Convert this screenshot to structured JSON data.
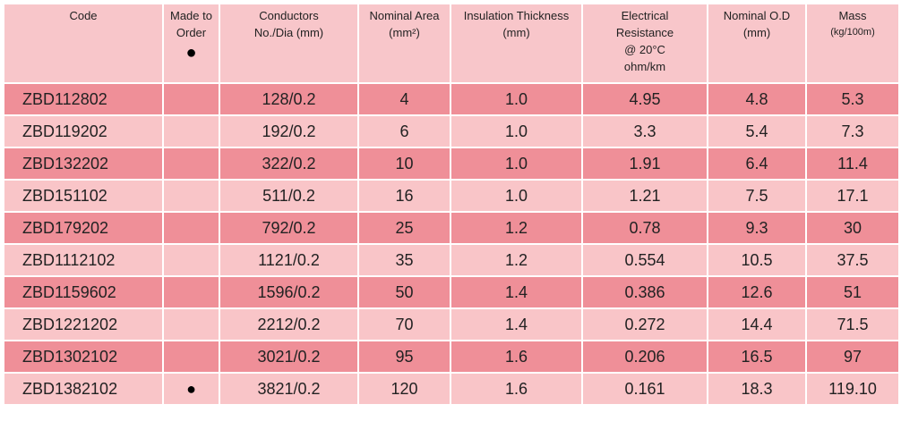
{
  "table": {
    "header": [
      [
        "Code"
      ],
      [
        "Made to",
        "Order",
        "●"
      ],
      [
        "Conductors",
        "No./Dia (mm)"
      ],
      [
        "Nominal Area",
        "(mm²)"
      ],
      [
        "Insulation Thickness",
        "(mm)"
      ],
      [
        "Electrical",
        "Resistance",
        "@ 20°C",
        "ohm/km"
      ],
      [
        "Nominal O.D",
        "(mm)"
      ],
      [
        "Mass",
        "(kg/100m)"
      ]
    ],
    "rows": [
      {
        "code": "ZBD112802",
        "conductors": "128/0.2",
        "area": "4",
        "insulation": "1.0",
        "resistance": "4.95",
        "od": "4.8",
        "mass": "5.3"
      },
      {
        "code": "ZBD119202",
        "conductors": "192/0.2",
        "area": "6",
        "insulation": "1.0",
        "resistance": "3.3",
        "od": "5.4",
        "mass": "7.3"
      },
      {
        "code": "ZBD132202",
        "conductors": "322/0.2",
        "area": "10",
        "insulation": "1.0",
        "resistance": "1.91",
        "od": "6.4",
        "mass": "11.4"
      },
      {
        "code": "ZBD151102",
        "conductors": "511/0.2",
        "area": "16",
        "insulation": "1.0",
        "resistance": "1.21",
        "od": "7.5",
        "mass": "17.1"
      },
      {
        "code": "ZBD179202",
        "conductors": "792/0.2",
        "area": "25",
        "insulation": "1.2",
        "resistance": "0.78",
        "od": "9.3",
        "mass": "30"
      },
      {
        "code": "ZBD1112102",
        "conductors": "1121/0.2",
        "area": "35",
        "insulation": "1.2",
        "resistance": "0.554",
        "od": "10.5",
        "mass": "37.5"
      },
      {
        "code": "ZBD1159602",
        "conductors": "1596/0.2",
        "area": "50",
        "insulation": "1.4",
        "resistance": "0.386",
        "od": "12.6",
        "mass": "51"
      },
      {
        "code": "ZBD1221202",
        "conductors": "2212/0.2",
        "area": "70",
        "insulation": "1.4",
        "resistance": "0.272",
        "od": "14.4",
        "mass": "71.5"
      },
      {
        "code": "ZBD1302102",
        "conductors": "3021/0.2",
        "area": "95",
        "insulation": "1.6",
        "resistance": "0.206",
        "od": "16.5",
        "mass": "97"
      },
      {
        "code": "ZBD1382102",
        "made_to_order": "●",
        "conductors": "3821/0.2",
        "area": "120",
        "insulation": "1.6",
        "resistance": "0.161",
        "od": "18.3",
        "mass": "119.10"
      }
    ]
  }
}
